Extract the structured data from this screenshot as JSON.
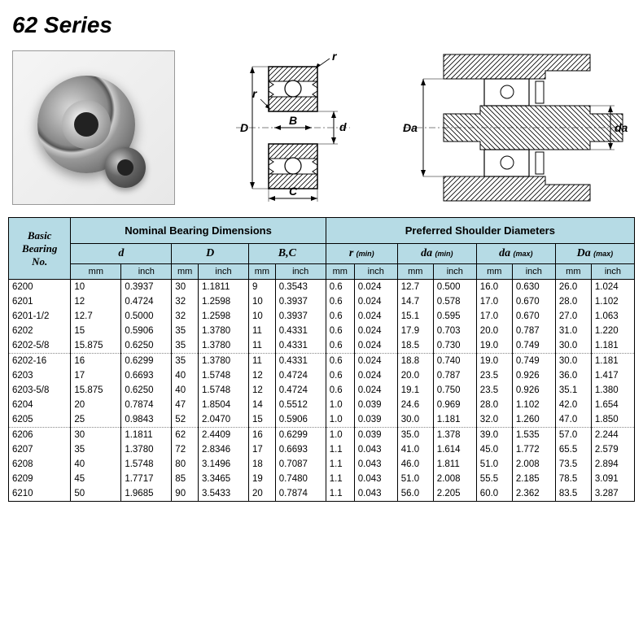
{
  "title": "62 Series",
  "diagrams": {
    "labels": {
      "r": "r",
      "D": "D",
      "B": "B",
      "d": "d",
      "C": "C",
      "Da": "Da",
      "da": "da"
    }
  },
  "table": {
    "group_headers": {
      "basic": "Basic\nBearing\nNo.",
      "nominal": "Nominal Bearing Dimensions",
      "preferred": "Preferred Shoulder Diameters"
    },
    "dim_headers": [
      {
        "name": "d",
        "sub": ""
      },
      {
        "name": "D",
        "sub": ""
      },
      {
        "name": "B,C",
        "sub": ""
      },
      {
        "name": "r",
        "sub": "(min)"
      },
      {
        "name": "da",
        "sub": "(min)"
      },
      {
        "name": "da",
        "sub": "(max)"
      },
      {
        "name": "Da",
        "sub": "(max)"
      }
    ],
    "unit_mm": "mm",
    "unit_inch": "inch",
    "rows": [
      {
        "no": "6200",
        "d_mm": "10",
        "d_in": "0.3937",
        "D_mm": "30",
        "D_in": "1.1811",
        "B_mm": "9",
        "B_in": "0.3543",
        "r_mm": "0.6",
        "r_in": "0.024",
        "damin_mm": "12.7",
        "damin_in": "0.500",
        "damax_mm": "16.0",
        "damax_in": "0.630",
        "Da_mm": "26.0",
        "Da_in": "1.024"
      },
      {
        "no": "6201",
        "d_mm": "12",
        "d_in": "0.4724",
        "D_mm": "32",
        "D_in": "1.2598",
        "B_mm": "10",
        "B_in": "0.3937",
        "r_mm": "0.6",
        "r_in": "0.024",
        "damin_mm": "14.7",
        "damin_in": "0.578",
        "damax_mm": "17.0",
        "damax_in": "0.670",
        "Da_mm": "28.0",
        "Da_in": "1.102"
      },
      {
        "no": "6201-1/2",
        "d_mm": "12.7",
        "d_in": "0.5000",
        "D_mm": "32",
        "D_in": "1.2598",
        "B_mm": "10",
        "B_in": "0.3937",
        "r_mm": "0.6",
        "r_in": "0.024",
        "damin_mm": "15.1",
        "damin_in": "0.595",
        "damax_mm": "17.0",
        "damax_in": "0.670",
        "Da_mm": "27.0",
        "Da_in": "1.063"
      },
      {
        "no": "6202",
        "d_mm": "15",
        "d_in": "0.5906",
        "D_mm": "35",
        "D_in": "1.3780",
        "B_mm": "11",
        "B_in": "0.4331",
        "r_mm": "0.6",
        "r_in": "0.024",
        "damin_mm": "17.9",
        "damin_in": "0.703",
        "damax_mm": "20.0",
        "damax_in": "0.787",
        "Da_mm": "31.0",
        "Da_in": "1.220"
      },
      {
        "no": "6202-5/8",
        "d_mm": "15.875",
        "d_in": "0.6250",
        "D_mm": "35",
        "D_in": "1.3780",
        "B_mm": "11",
        "B_in": "0.4331",
        "r_mm": "0.6",
        "r_in": "0.024",
        "damin_mm": "18.5",
        "damin_in": "0.730",
        "damax_mm": "19.0",
        "damax_in": "0.749",
        "Da_mm": "30.0",
        "Da_in": "1.181"
      },
      {
        "no": "6202-16",
        "d_mm": "16",
        "d_in": "0.6299",
        "D_mm": "35",
        "D_in": "1.3780",
        "B_mm": "11",
        "B_in": "0.4331",
        "r_mm": "0.6",
        "r_in": "0.024",
        "damin_mm": "18.8",
        "damin_in": "0.740",
        "damax_mm": "19.0",
        "damax_in": "0.749",
        "Da_mm": "30.0",
        "Da_in": "1.181"
      },
      {
        "no": "6203",
        "d_mm": "17",
        "d_in": "0.6693",
        "D_mm": "40",
        "D_in": "1.5748",
        "B_mm": "12",
        "B_in": "0.4724",
        "r_mm": "0.6",
        "r_in": "0.024",
        "damin_mm": "20.0",
        "damin_in": "0.787",
        "damax_mm": "23.5",
        "damax_in": "0.926",
        "Da_mm": "36.0",
        "Da_in": "1.417"
      },
      {
        "no": "6203-5/8",
        "d_mm": "15.875",
        "d_in": "0.6250",
        "D_mm": "40",
        "D_in": "1.5748",
        "B_mm": "12",
        "B_in": "0.4724",
        "r_mm": "0.6",
        "r_in": "0.024",
        "damin_mm": "19.1",
        "damin_in": "0.750",
        "damax_mm": "23.5",
        "damax_in": "0.926",
        "Da_mm": "35.1",
        "Da_in": "1.380"
      },
      {
        "no": "6204",
        "d_mm": "20",
        "d_in": "0.7874",
        "D_mm": "47",
        "D_in": "1.8504",
        "B_mm": "14",
        "B_in": "0.5512",
        "r_mm": "1.0",
        "r_in": "0.039",
        "damin_mm": "24.6",
        "damin_in": "0.969",
        "damax_mm": "28.0",
        "damax_in": "1.102",
        "Da_mm": "42.0",
        "Da_in": "1.654"
      },
      {
        "no": "6205",
        "d_mm": "25",
        "d_in": "0.9843",
        "D_mm": "52",
        "D_in": "2.0470",
        "B_mm": "15",
        "B_in": "0.5906",
        "r_mm": "1.0",
        "r_in": "0.039",
        "damin_mm": "30.0",
        "damin_in": "1.181",
        "damax_mm": "32.0",
        "damax_in": "1.260",
        "Da_mm": "47.0",
        "Da_in": "1.850"
      },
      {
        "no": "6206",
        "d_mm": "30",
        "d_in": "1.1811",
        "D_mm": "62",
        "D_in": "2.4409",
        "B_mm": "16",
        "B_in": "0.6299",
        "r_mm": "1.0",
        "r_in": "0.039",
        "damin_mm": "35.0",
        "damin_in": "1.378",
        "damax_mm": "39.0",
        "damax_in": "1.535",
        "Da_mm": "57.0",
        "Da_in": "2.244"
      },
      {
        "no": "6207",
        "d_mm": "35",
        "d_in": "1.3780",
        "D_mm": "72",
        "D_in": "2.8346",
        "B_mm": "17",
        "B_in": "0.6693",
        "r_mm": "1.1",
        "r_in": "0.043",
        "damin_mm": "41.0",
        "damin_in": "1.614",
        "damax_mm": "45.0",
        "damax_in": "1.772",
        "Da_mm": "65.5",
        "Da_in": "2.579"
      },
      {
        "no": "6208",
        "d_mm": "40",
        "d_in": "1.5748",
        "D_mm": "80",
        "D_in": "3.1496",
        "B_mm": "18",
        "B_in": "0.7087",
        "r_mm": "1.1",
        "r_in": "0.043",
        "damin_mm": "46.0",
        "damin_in": "1.811",
        "damax_mm": "51.0",
        "damax_in": "2.008",
        "Da_mm": "73.5",
        "Da_in": "2.894"
      },
      {
        "no": "6209",
        "d_mm": "45",
        "d_in": "1.7717",
        "D_mm": "85",
        "D_in": "3.3465",
        "B_mm": "19",
        "B_in": "0.7480",
        "r_mm": "1.1",
        "r_in": "0.043",
        "damin_mm": "51.0",
        "damin_in": "2.008",
        "damax_mm": "55.5",
        "damax_in": "2.185",
        "Da_mm": "78.5",
        "Da_in": "3.091"
      },
      {
        "no": "6210",
        "d_mm": "50",
        "d_in": "1.9685",
        "D_mm": "90",
        "D_in": "3.5433",
        "B_mm": "20",
        "B_in": "0.7874",
        "r_mm": "1.1",
        "r_in": "0.043",
        "damin_mm": "56.0",
        "damin_in": "2.205",
        "damax_mm": "60.0",
        "damax_in": "2.362",
        "Da_mm": "83.5",
        "Da_in": "3.287"
      }
    ]
  },
  "colors": {
    "header_bg": "#b6dbe5",
    "border": "#000000"
  }
}
